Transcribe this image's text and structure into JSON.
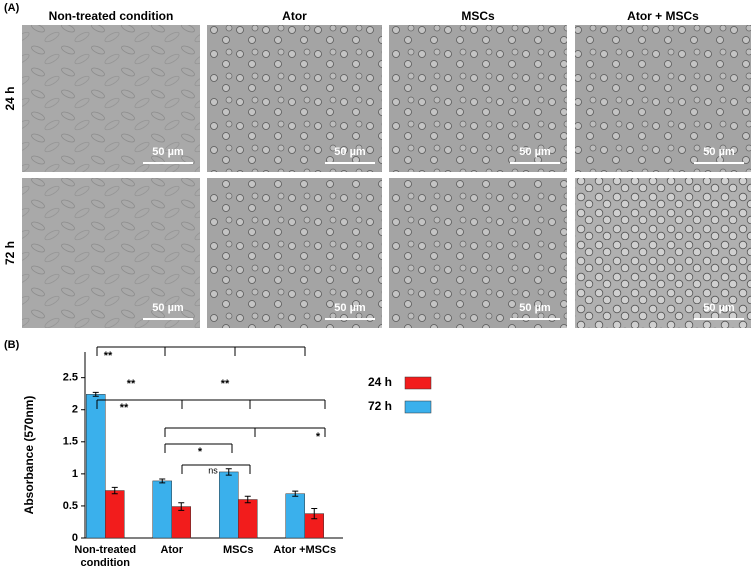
{
  "panel_a": {
    "label": "(A)",
    "columns": [
      "Non-treated condition",
      "Ator",
      "MSCs",
      "Ator + MSCs"
    ],
    "rows": [
      "24 h",
      "72 h"
    ],
    "scale_bars": [
      "50 µm",
      "50 µm",
      "50 µm",
      "50 µm",
      "50 µm",
      "50 µm",
      "50 µm",
      "50 µm"
    ]
  },
  "panel_b": {
    "label": "(B)"
  },
  "chart_data": {
    "type": "bar",
    "ylabel": "Absorbance (570nm)",
    "categories": [
      "Non-treated condition",
      "Ator",
      "MSCs",
      "Ator +MSCs"
    ],
    "series": [
      {
        "name": "24 h",
        "color": "#f21c1c",
        "values": [
          0.74,
          0.49,
          0.6,
          0.38
        ],
        "errors": [
          0.05,
          0.06,
          0.05,
          0.08
        ]
      },
      {
        "name": "72 h",
        "color": "#3ab0ec",
        "values": [
          2.24,
          0.89,
          1.03,
          0.69
        ],
        "errors": [
          0.03,
          0.03,
          0.05,
          0.04
        ]
      }
    ],
    "ylim": [
      0,
      2.9
    ],
    "yticks": [
      0,
      0.5,
      1,
      1.5,
      2,
      2.5
    ],
    "annotations": [
      "**",
      "**",
      "**",
      "**",
      "*",
      "*",
      "ns"
    ]
  }
}
